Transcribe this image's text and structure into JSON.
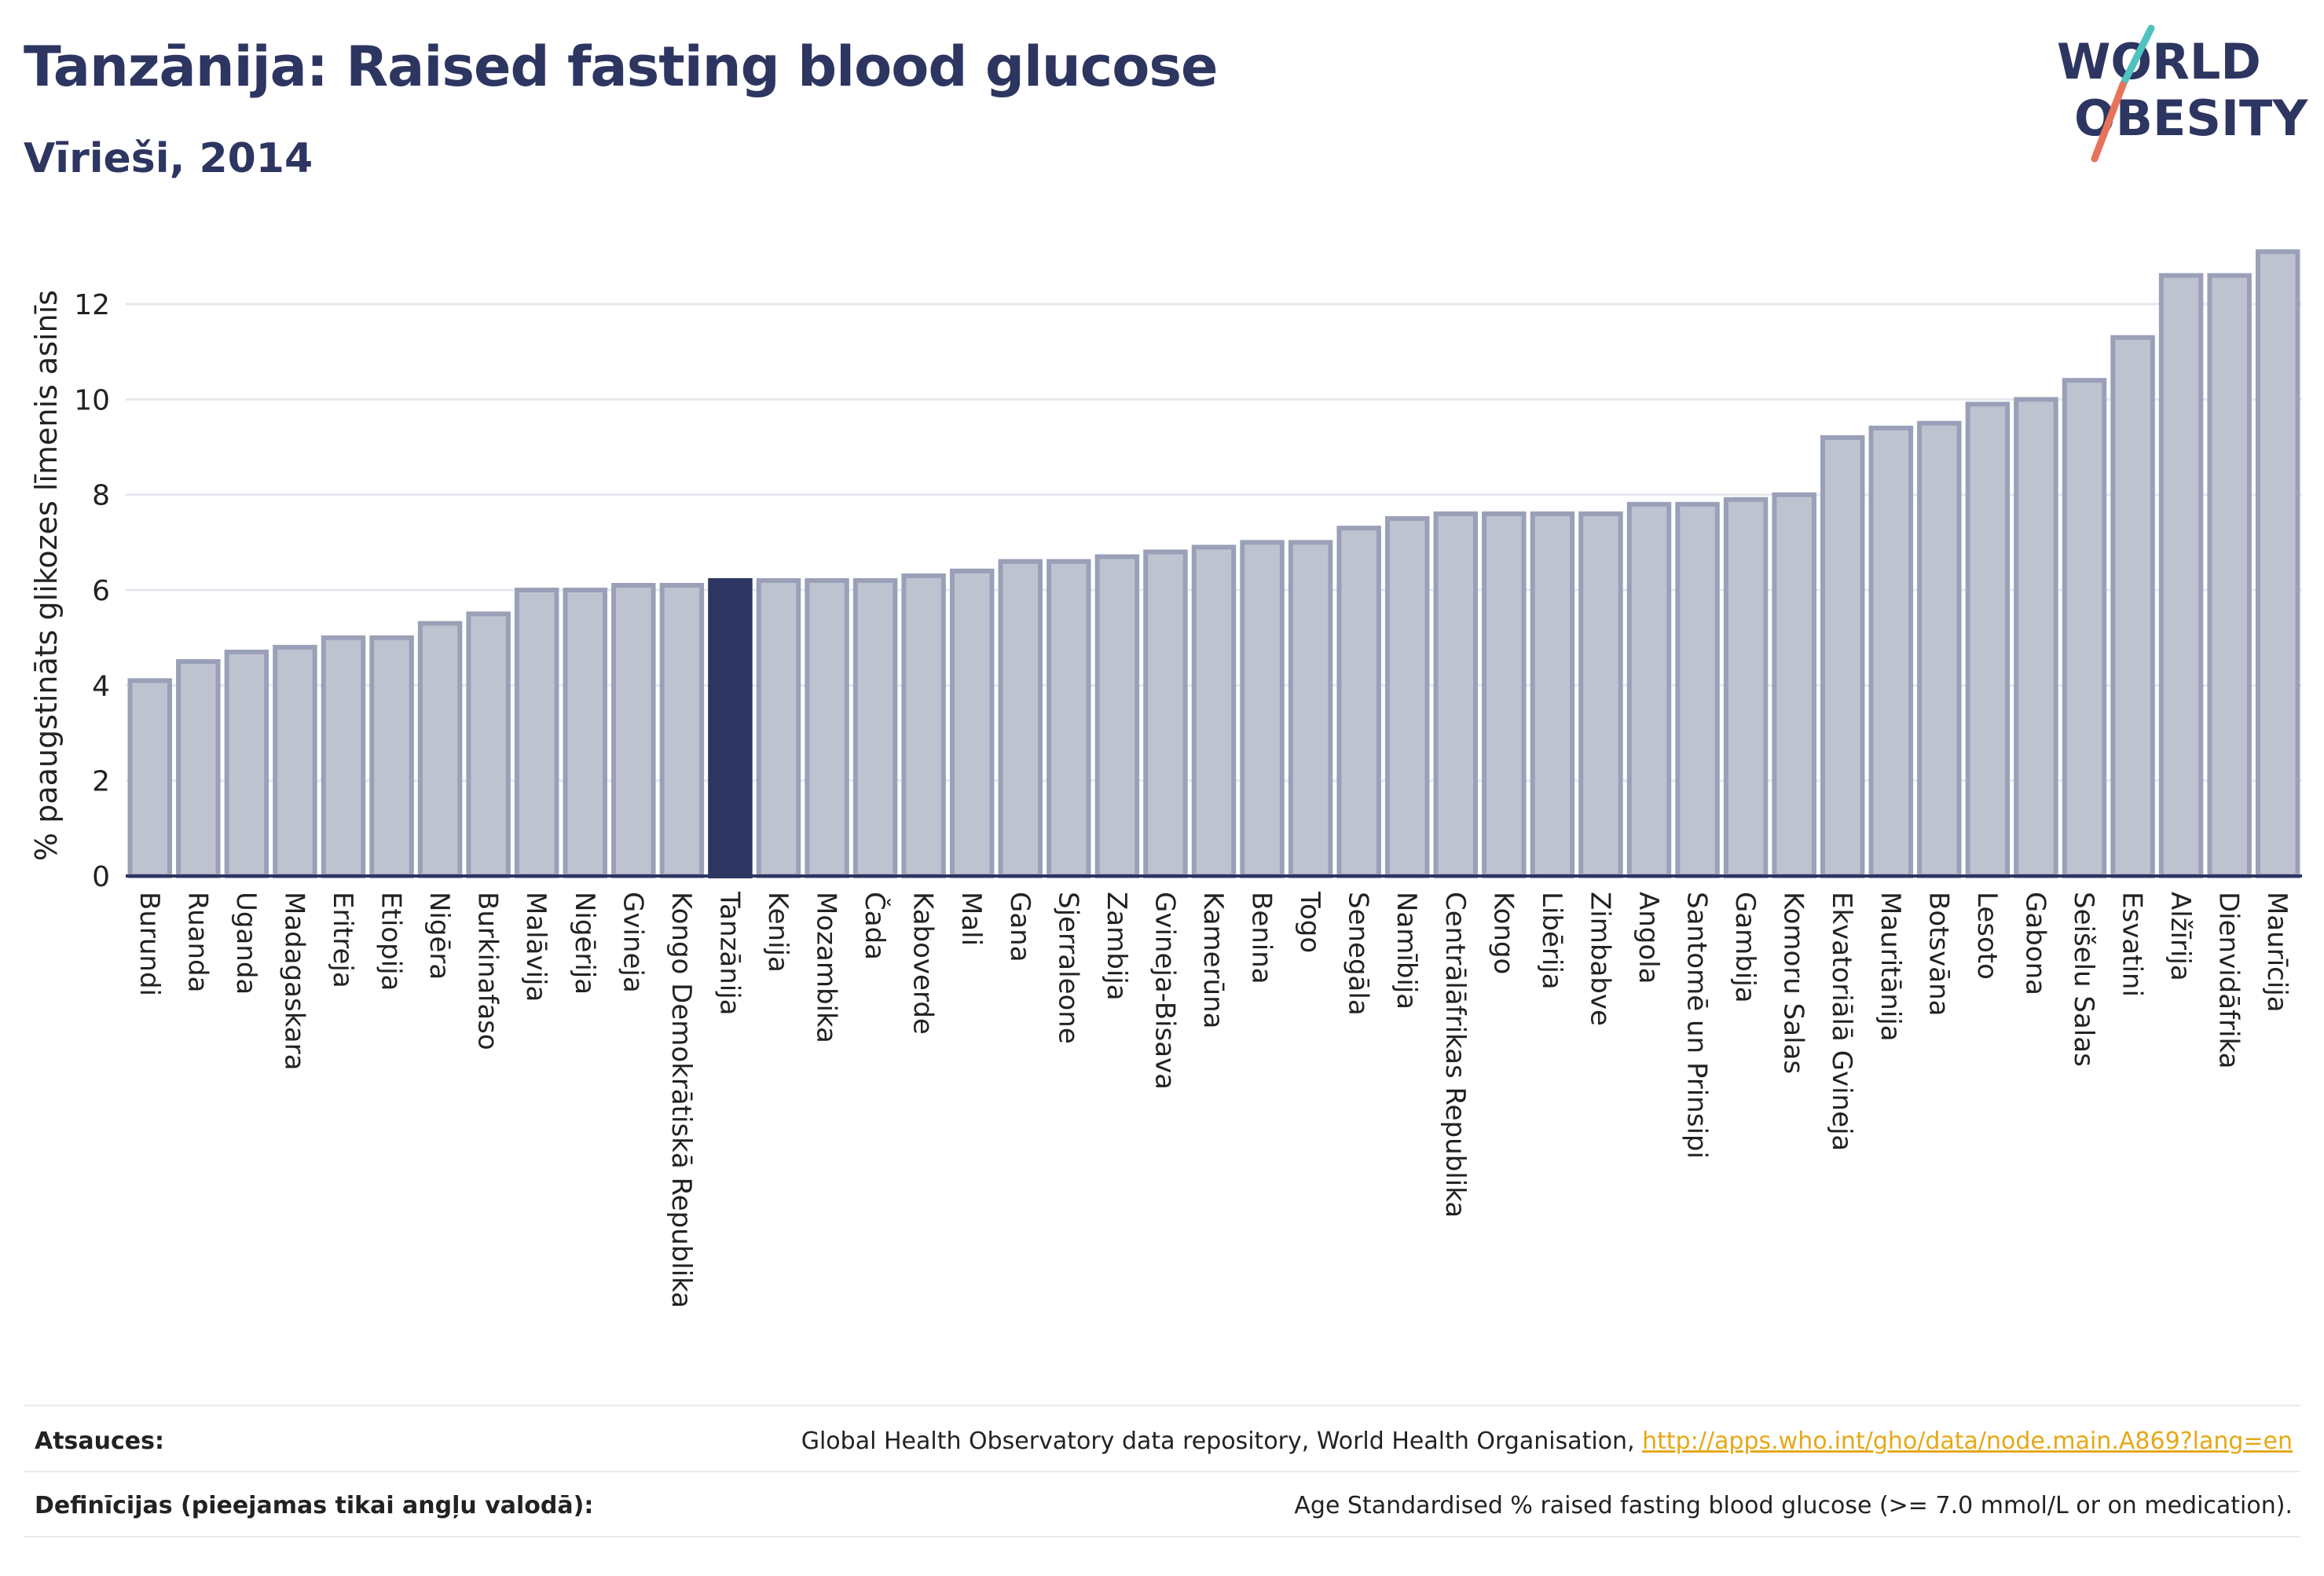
{
  "header": {
    "title": "Tanzānija: Raised fasting blood glucose",
    "subtitle": "Vīrieši, 2014"
  },
  "logo": {
    "line1": "WORLD",
    "line2": "OBESITY",
    "slash_colors": [
      "#4ec3c0",
      "#e8735a"
    ],
    "text_color": "#2d3561"
  },
  "chart_data": {
    "type": "bar",
    "ylabel": "% paaugstināts glikozes līmenis asinīs",
    "ylim": [
      0,
      13.6
    ],
    "yticks": [
      0,
      2,
      4,
      6,
      8,
      10,
      12
    ],
    "grid": true,
    "highlight": "Tanzānija",
    "colors": {
      "bar": "#bfc3d0",
      "bar_edge": "#9aa0b8",
      "highlight": "#2d3561",
      "grid": "#e6e8ee",
      "axis": "#2d3561"
    },
    "categories": [
      "Burundi",
      "Ruanda",
      "Uganda",
      "Madagaskara",
      "Eritreja",
      "Etiopija",
      "Nigēra",
      "Burkinafaso",
      "Malāvija",
      "Nigērija",
      "Gvineja",
      "Kongo Demokrātiskā Republika",
      "Tanzānija",
      "Kenija",
      "Mozambika",
      "Čada",
      "Kaboverde",
      "Mali",
      "Gana",
      "Sjerraleone",
      "Zambija",
      "Gvineja-Bisava",
      "Kamerūna",
      "Benina",
      "Togo",
      "Senegāla",
      "Namībija",
      "Centrālāfrikas Republika",
      "Kongo",
      "Libērija",
      "Zimbabve",
      "Angola",
      "Santomē un Prinsipi",
      "Gambija",
      "Komoru Salas",
      "Ekvatoriālā Gvineja",
      "Mauritānija",
      "Botsvāna",
      "Lesoto",
      "Gabona",
      "Seišelu Salas",
      "Esvatini",
      "Alžīrija",
      "Dienvidāfrika",
      "Maurīcija"
    ],
    "values": [
      4.1,
      4.5,
      4.7,
      4.8,
      5.0,
      5.0,
      5.3,
      5.5,
      6.0,
      6.0,
      6.1,
      6.1,
      6.2,
      6.2,
      6.2,
      6.2,
      6.3,
      6.4,
      6.6,
      6.6,
      6.7,
      6.8,
      6.9,
      7.0,
      7.0,
      7.3,
      7.5,
      7.6,
      7.6,
      7.6,
      7.6,
      7.8,
      7.8,
      7.9,
      8.0,
      9.2,
      9.4,
      9.5,
      9.9,
      10.0,
      10.4,
      11.3,
      12.6,
      12.6,
      13.1
    ]
  },
  "footer": {
    "sources_label": "Atsauces:",
    "sources_text": "Global Health Observatory data repository, World Health Organisation, ",
    "sources_link": "http://apps.who.int/gho/data/node.main.A869?lang=en",
    "definitions_label": "Definīcijas (pieejamas tikai angļu valodā):",
    "definitions_text": "Age Standardised % raised fasting blood glucose (>= 7.0 mmol/L or on medication)."
  }
}
